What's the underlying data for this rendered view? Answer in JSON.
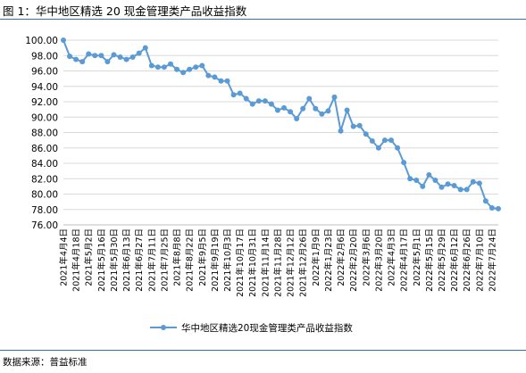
{
  "figure": {
    "title": "图 1：华中地区精选 20 现金管理类产品收益指数",
    "source": "数据来源：普益标准"
  },
  "chart_data": {
    "type": "line",
    "ylim": [
      76,
      100
    ],
    "yticks": [
      "76.00",
      "78.00",
      "80.00",
      "82.00",
      "84.00",
      "86.00",
      "88.00",
      "90.00",
      "92.00",
      "94.00",
      "96.00",
      "98.00",
      "100.00"
    ],
    "xtick_labels": [
      "2021年4月4日",
      "2021年4月18日",
      "2021年5月2日",
      "2021年5月16日",
      "2021年5月30日",
      "2021年6月13日",
      "2021年6月27日",
      "2021年7月11日",
      "2021年7月25日",
      "2021年8月8日",
      "2021年8月22日",
      "2021年9月5日",
      "2021年9月19日",
      "2021年10月3日",
      "2021年10月17日",
      "2021年10月31日",
      "2021年11月14日",
      "2021年11月28日",
      "2021年12月12日",
      "2021年12月26日",
      "2022年1月9日",
      "2022年1月23日",
      "2022年2月6日",
      "2022年2月20日",
      "2022年3月6日",
      "2022年3月20日",
      "2022年4月3日",
      "2022年4月17日",
      "2022年5月1日",
      "2022年5月15日",
      "2022年5月29日",
      "2022年6月12日",
      "2022年6月26日",
      "2022年7月10日",
      "2022年7月24日"
    ],
    "series": [
      {
        "name": "华中地区精选20现金管理类产品收益指数",
        "color": "#5b9bd5",
        "values": [
          100.0,
          97.9,
          97.5,
          97.2,
          98.2,
          98.0,
          98.0,
          97.2,
          98.1,
          97.8,
          97.5,
          97.8,
          98.3,
          99.0,
          96.7,
          96.5,
          96.5,
          96.9,
          96.2,
          95.8,
          96.2,
          96.5,
          96.7,
          95.4,
          95.2,
          94.7,
          94.7,
          92.9,
          93.1,
          92.4,
          91.7,
          92.1,
          92.1,
          91.7,
          90.9,
          91.2,
          90.7,
          89.8,
          91.1,
          92.4,
          91.1,
          90.4,
          90.8,
          92.6,
          88.2,
          90.9,
          88.8,
          88.9,
          87.8,
          86.9,
          86.0,
          87.0,
          87.0,
          86.0,
          84.1,
          82.0,
          81.8,
          81.0,
          82.5,
          81.8,
          80.9,
          81.3,
          81.1,
          80.6,
          80.6,
          81.6,
          81.4,
          79.1,
          78.2,
          78.1
        ]
      }
    ],
    "legend_position": "bottom",
    "grid": "horizontal"
  }
}
